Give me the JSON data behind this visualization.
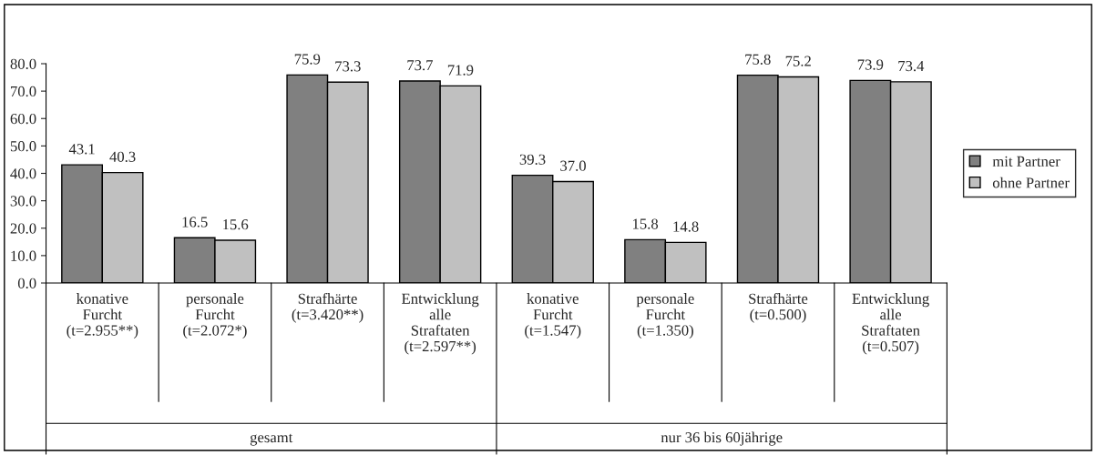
{
  "chart_data": {
    "type": "bar",
    "categories": [
      "konative\nFurcht\n(t=2.955**)",
      "personale\nFurcht\n(t=2.072*)",
      "Strafhärte\n(t=3.420**)",
      "Entwicklung\nalle\nStraftaten\n(t=2.597**)",
      "konative\nFurcht\n(t=1.547)",
      "personale\nFurcht\n(t=1.350)",
      "Strafhärte\n(t=0.500)",
      "Entwicklung\nalle\nStraftaten\n(t=0.507)"
    ],
    "series": [
      {
        "name": "mit Partner",
        "color": "#808080",
        "values": [
          43.1,
          16.5,
          75.9,
          73.7,
          39.3,
          15.8,
          75.8,
          73.9
        ],
        "value_labels": [
          "43.1",
          "16.5",
          "75.9",
          "73.7",
          "39.3",
          "15.8",
          "75.8",
          "73.9"
        ]
      },
      {
        "name": "ohne Partner",
        "color": "#c0c0c0",
        "values": [
          40.3,
          15.6,
          73.3,
          71.9,
          37.0,
          14.8,
          75.2,
          73.4
        ],
        "value_labels": [
          "40.3",
          "15.6",
          "73.3",
          "71.9",
          "37.0",
          "14.8",
          "75.2",
          "73.4"
        ]
      }
    ],
    "ylim": [
      0,
      80
    ],
    "yticks": [
      {
        "value": 0,
        "label": "0.0"
      },
      {
        "value": 10,
        "label": "10.0"
      },
      {
        "value": 20,
        "label": "20.0"
      },
      {
        "value": 30,
        "label": "30.0"
      },
      {
        "value": 40,
        "label": "40.0"
      },
      {
        "value": 50,
        "label": "50.0"
      },
      {
        "value": 60,
        "label": "60.0"
      },
      {
        "value": 70,
        "label": "70.0"
      },
      {
        "value": 80,
        "label": "80.0"
      }
    ],
    "annotations": [
      "gesamt",
      "nur 36 bis 60jährige"
    ],
    "grid": false,
    "legend": "right"
  }
}
